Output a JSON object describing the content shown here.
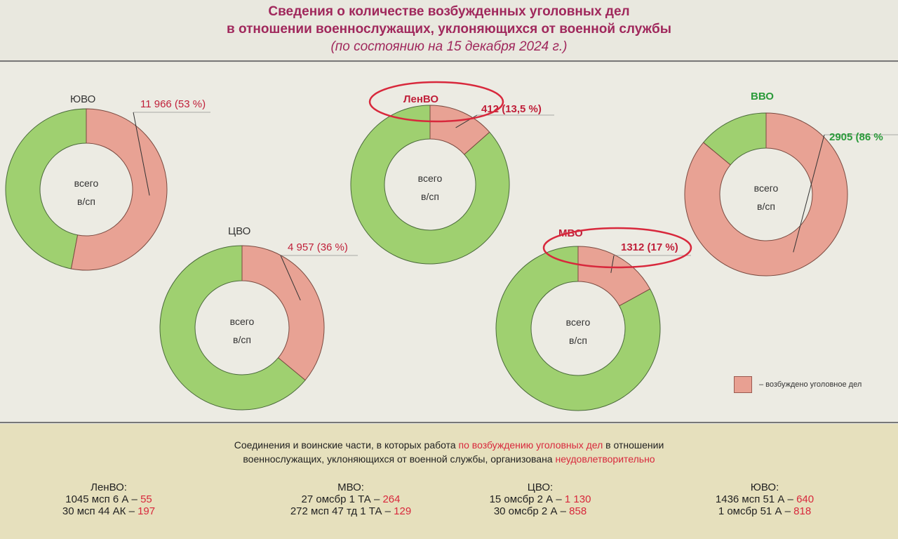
{
  "title": {
    "line1": "Сведения о количестве возбужденных уголовных дел",
    "line2": "в отношении военнослужащих, уклоняющихся от военной службы",
    "line3": "(по состоянию на 15 декабря 2024 г.)"
  },
  "colors": {
    "criminal_case": "#e8a294",
    "other": "#9fd070",
    "title": "#a0285c",
    "highlight": "#d8283c"
  },
  "chart_data": {
    "type": "pie",
    "center_label": "всего в/сп",
    "legend": {
      "label": "– возбуждено уголовное дел",
      "placement": "bottom-right"
    },
    "charts": [
      {
        "district": "ЮВО",
        "value_label": "11 966 (53 %)",
        "value": 11966,
        "percent": 53
      },
      {
        "district": "ЛенВО",
        "value_label": "412 (13,5 %)",
        "value": 412,
        "percent": 13.5,
        "circled": true
      },
      {
        "district": "ВВО",
        "value_label": "2905 (86 %",
        "value": 2905,
        "percent": 86
      },
      {
        "district": "ЦВО",
        "value_label": "4 957 (36 %)",
        "value": 4957,
        "percent": 36
      },
      {
        "district": "МВО",
        "value_label": "1312 (17 %)",
        "value": 1312,
        "percent": 17,
        "circled": true
      }
    ]
  },
  "note": {
    "part1": "Соединения и воинские части, в которых работа ",
    "part2": "по возбуждению уголовных дел",
    "part3": " в отношении",
    "part4": "военнослужащих, уклоняющихся от военной службы, организована ",
    "part5": "неудовлетворительно"
  },
  "units": [
    {
      "district": "ЛенВО:",
      "rows": [
        {
          "unit": "1045 мсп 6 А –",
          "count": "55"
        },
        {
          "unit": "30 мсп 44 АК –",
          "count": "197"
        }
      ]
    },
    {
      "district": "МВО:",
      "rows": [
        {
          "unit": "27 омсбр 1 ТА –",
          "count": "264"
        },
        {
          "unit": "272 мсп 47 тд 1 ТА –",
          "count": "129"
        }
      ]
    },
    {
      "district": "ЦВО:",
      "rows": [
        {
          "unit": "15 омсбр 2 А –",
          "count": "1 130"
        },
        {
          "unit": "30 омсбр 2 А –",
          "count": "858"
        }
      ]
    },
    {
      "district": "ЮВО:",
      "rows": [
        {
          "unit": "1436 мсп 51 А –",
          "count": "640"
        },
        {
          "unit": "1 омсбр 51 А –",
          "count": "818"
        }
      ]
    }
  ]
}
